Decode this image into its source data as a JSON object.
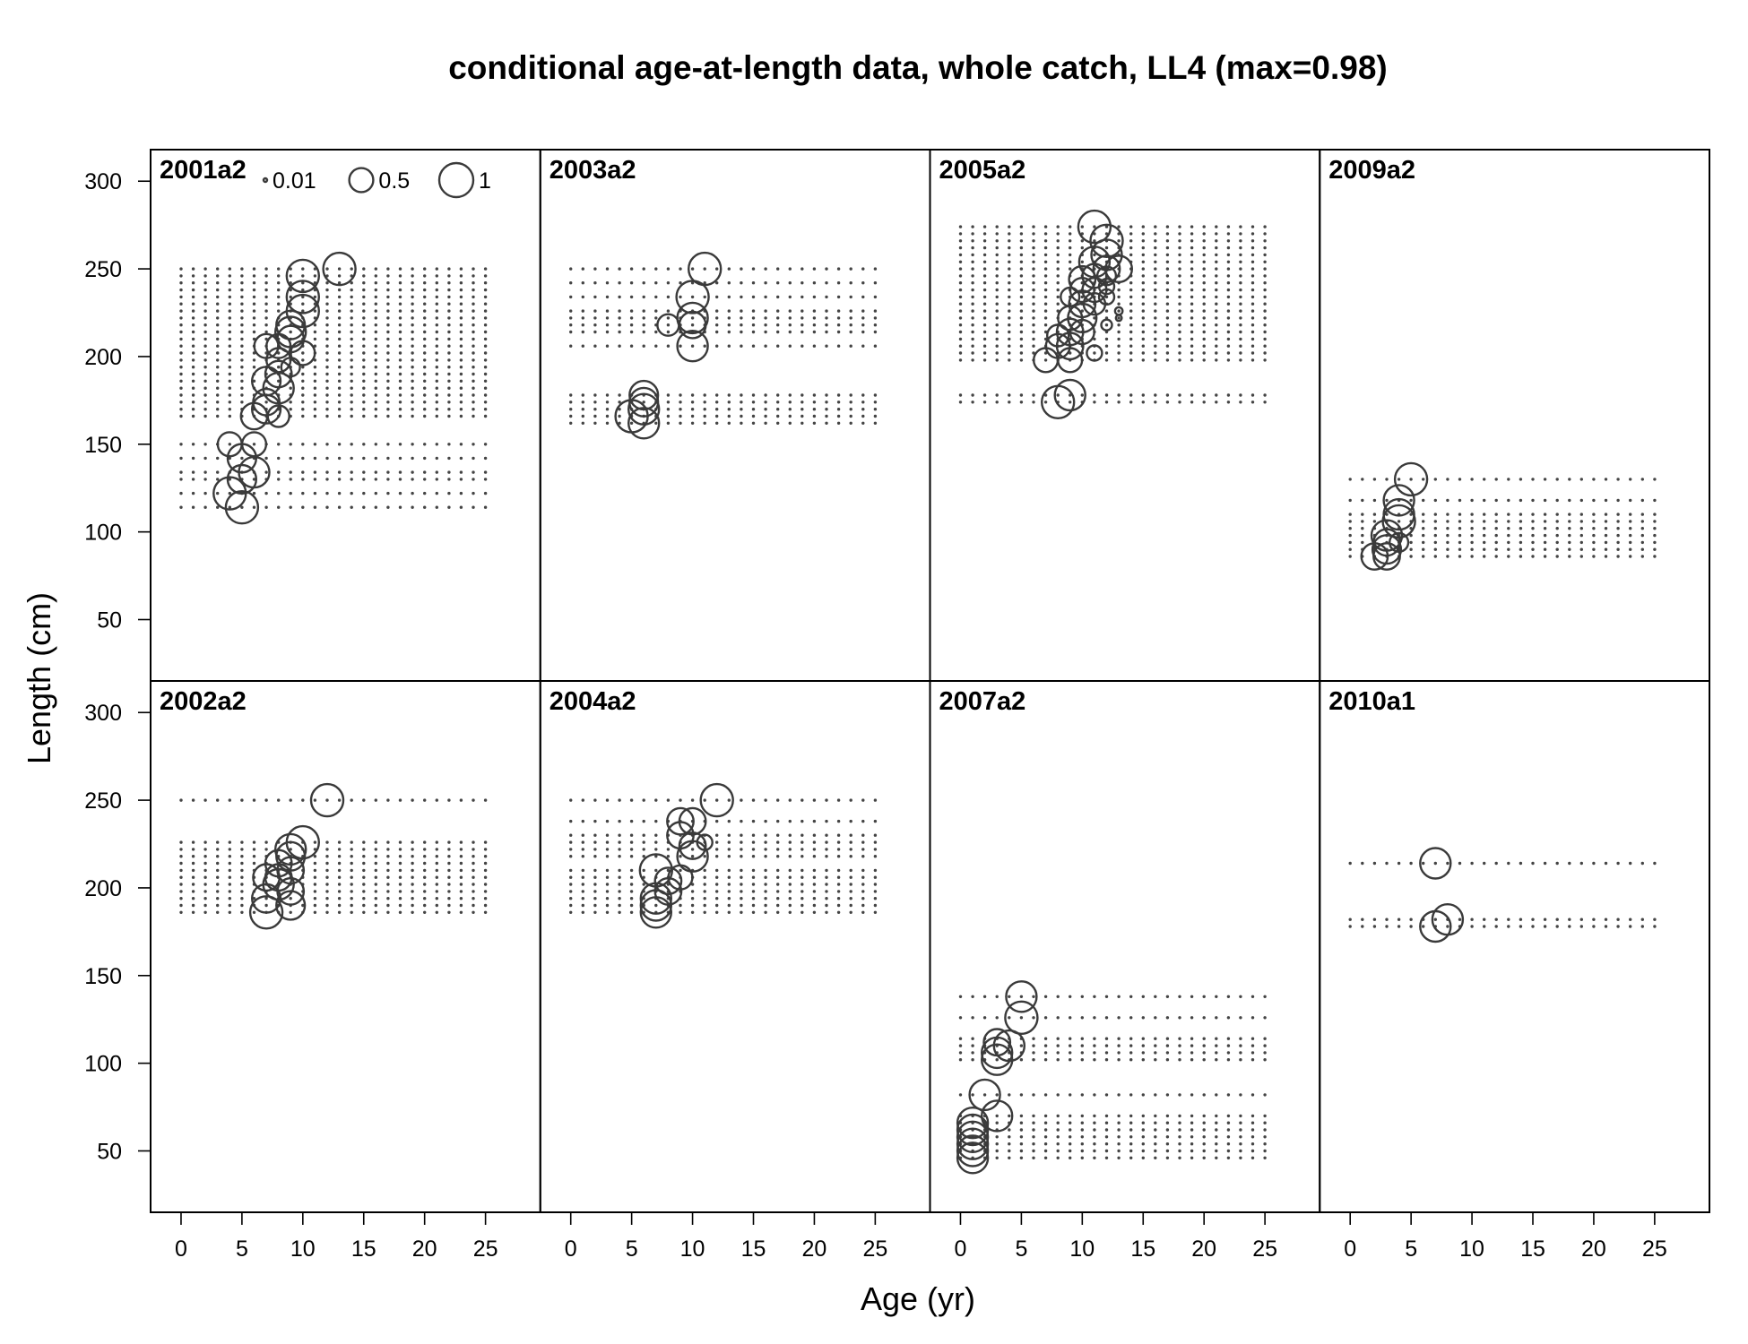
{
  "chart_data": {
    "type": "scatter",
    "title": "conditional age-at-length data, whole catch, LL4 (max=0.98)",
    "xlabel": "Age (yr)",
    "ylabel": "Length (cm)",
    "xlim": [
      -2.5,
      29.5
    ],
    "ylim": [
      15,
      318
    ],
    "x_ticks": [
      0,
      5,
      10,
      15,
      20,
      25
    ],
    "y_ticks": [
      50,
      100,
      150,
      200,
      250,
      300
    ],
    "grid": false,
    "layout_rows": 2,
    "layout_cols": 4,
    "legend": {
      "placement": "top",
      "entries": [
        {
          "label": "0.01",
          "value": 0.01
        },
        {
          "label": "0.5",
          "value": 0.5
        },
        {
          "label": "1",
          "value": 1
        }
      ]
    },
    "panels": [
      {
        "label": "2001a2",
        "lengths": [
          114,
          122,
          130,
          134,
          142,
          150,
          166,
          170,
          174,
          178,
          182,
          186,
          190,
          194,
          198,
          202,
          206,
          210,
          214,
          218,
          222,
          226,
          230,
          234,
          238,
          242,
          246,
          250
        ],
        "points": [
          {
            "age": 5,
            "length": 114,
            "value": 0.9
          },
          {
            "age": 4,
            "length": 122,
            "value": 0.9
          },
          {
            "age": 5,
            "length": 130,
            "value": 0.7
          },
          {
            "age": 6,
            "length": 134,
            "value": 0.8
          },
          {
            "age": 5,
            "length": 142,
            "value": 0.7
          },
          {
            "age": 4,
            "length": 150,
            "value": 0.5
          },
          {
            "age": 6,
            "length": 150,
            "value": 0.5
          },
          {
            "age": 6,
            "length": 166,
            "value": 0.6
          },
          {
            "age": 8,
            "length": 166,
            "value": 0.4
          },
          {
            "age": 7,
            "length": 170,
            "value": 0.7
          },
          {
            "age": 7,
            "length": 174,
            "value": 0.6
          },
          {
            "age": 8,
            "length": 182,
            "value": 0.8
          },
          {
            "age": 7,
            "length": 186,
            "value": 0.7
          },
          {
            "age": 8,
            "length": 190,
            "value": 0.6
          },
          {
            "age": 9,
            "length": 194,
            "value": 0.3
          },
          {
            "age": 8,
            "length": 198,
            "value": 0.5
          },
          {
            "age": 10,
            "length": 202,
            "value": 0.5
          },
          {
            "age": 7,
            "length": 206,
            "value": 0.5
          },
          {
            "age": 8,
            "length": 206,
            "value": 0.5
          },
          {
            "age": 9,
            "length": 210,
            "value": 0.6
          },
          {
            "age": 9,
            "length": 214,
            "value": 0.8
          },
          {
            "age": 9,
            "length": 218,
            "value": 0.7
          },
          {
            "age": 10,
            "length": 226,
            "value": 0.9
          },
          {
            "age": 10,
            "length": 234,
            "value": 0.9
          },
          {
            "age": 10,
            "length": 246,
            "value": 0.9
          },
          {
            "age": 13,
            "length": 250,
            "value": 0.9
          }
        ]
      },
      {
        "label": "2003a2",
        "lengths": [
          162,
          166,
          170,
          174,
          178,
          206,
          214,
          218,
          222,
          226,
          234,
          242,
          250
        ],
        "points": [
          {
            "age": 6,
            "length": 162,
            "value": 0.8
          },
          {
            "age": 5,
            "length": 166,
            "value": 0.9
          },
          {
            "age": 6,
            "length": 170,
            "value": 0.8
          },
          {
            "age": 6,
            "length": 174,
            "value": 0.7
          },
          {
            "age": 6,
            "length": 178,
            "value": 0.7
          },
          {
            "age": 10,
            "length": 206,
            "value": 0.8
          },
          {
            "age": 8,
            "length": 218,
            "value": 0.4
          },
          {
            "age": 10,
            "length": 218,
            "value": 0.6
          },
          {
            "age": 10,
            "length": 222,
            "value": 0.8
          },
          {
            "age": 10,
            "length": 234,
            "value": 0.9
          },
          {
            "age": 11,
            "length": 250,
            "value": 0.9
          }
        ]
      },
      {
        "label": "2005a2",
        "lengths": [
          174,
          178,
          198,
          202,
          206,
          210,
          214,
          218,
          222,
          226,
          230,
          234,
          238,
          242,
          246,
          250,
          254,
          258,
          262,
          266,
          270,
          274
        ],
        "points": [
          {
            "age": 8,
            "length": 174,
            "value": 0.9
          },
          {
            "age": 9,
            "length": 178,
            "value": 0.8
          },
          {
            "age": 7,
            "length": 198,
            "value": 0.5
          },
          {
            "age": 9,
            "length": 198,
            "value": 0.5
          },
          {
            "age": 11,
            "length": 202,
            "value": 0.2
          },
          {
            "age": 8,
            "length": 206,
            "value": 0.5
          },
          {
            "age": 9,
            "length": 206,
            "value": 0.6
          },
          {
            "age": 8,
            "length": 212,
            "value": 0.4
          },
          {
            "age": 9,
            "length": 214,
            "value": 0.6
          },
          {
            "age": 10,
            "length": 214,
            "value": 0.5
          },
          {
            "age": 12,
            "length": 218,
            "value": 0.1
          },
          {
            "age": 9,
            "length": 222,
            "value": 0.5
          },
          {
            "age": 10,
            "length": 222,
            "value": 0.7
          },
          {
            "age": 13,
            "length": 222,
            "value": 0.03
          },
          {
            "age": 13,
            "length": 226,
            "value": 0.05
          },
          {
            "age": 10,
            "length": 230,
            "value": 0.6
          },
          {
            "age": 11,
            "length": 230,
            "value": 0.4
          },
          {
            "age": 9,
            "length": 234,
            "value": 0.3
          },
          {
            "age": 12,
            "length": 234,
            "value": 0.2
          },
          {
            "age": 10,
            "length": 238,
            "value": 0.5
          },
          {
            "age": 11,
            "length": 238,
            "value": 0.5
          },
          {
            "age": 12,
            "length": 240,
            "value": 0.2
          },
          {
            "age": 10,
            "length": 244,
            "value": 0.6
          },
          {
            "age": 11,
            "length": 246,
            "value": 0.5
          },
          {
            "age": 12,
            "length": 246,
            "value": 0.3
          },
          {
            "age": 12,
            "length": 250,
            "value": 0.6
          },
          {
            "age": 13,
            "length": 250,
            "value": 0.6
          },
          {
            "age": 11,
            "length": 254,
            "value": 0.8
          },
          {
            "age": 12,
            "length": 258,
            "value": 0.8
          },
          {
            "age": 12,
            "length": 266,
            "value": 0.9
          },
          {
            "age": 11,
            "length": 274,
            "value": 0.9
          }
        ]
      },
      {
        "label": "2009a2",
        "lengths": [
          86,
          90,
          94,
          98,
          102,
          106,
          110,
          118,
          130
        ],
        "points": [
          {
            "age": 2,
            "length": 86,
            "value": 0.6
          },
          {
            "age": 3,
            "length": 86,
            "value": 0.6
          },
          {
            "age": 3,
            "length": 90,
            "value": 0.7
          },
          {
            "age": 3,
            "length": 94,
            "value": 0.6
          },
          {
            "age": 4,
            "length": 94,
            "value": 0.3
          },
          {
            "age": 3,
            "length": 98,
            "value": 0.8
          },
          {
            "age": 4,
            "length": 106,
            "value": 0.9
          },
          {
            "age": 4,
            "length": 110,
            "value": 0.8
          },
          {
            "age": 4,
            "length": 118,
            "value": 0.8
          },
          {
            "age": 5,
            "length": 130,
            "value": 0.9
          }
        ]
      },
      {
        "label": "2002a2",
        "lengths": [
          186,
          190,
          194,
          198,
          202,
          206,
          210,
          214,
          218,
          222,
          226,
          250
        ],
        "points": [
          {
            "age": 7,
            "length": 186,
            "value": 0.9
          },
          {
            "age": 9,
            "length": 190,
            "value": 0.7
          },
          {
            "age": 7,
            "length": 194,
            "value": 0.7
          },
          {
            "age": 9,
            "length": 198,
            "value": 0.6
          },
          {
            "age": 8,
            "length": 202,
            "value": 0.8
          },
          {
            "age": 7,
            "length": 206,
            "value": 0.6
          },
          {
            "age": 8,
            "length": 206,
            "value": 0.6
          },
          {
            "age": 9,
            "length": 210,
            "value": 0.6
          },
          {
            "age": 8,
            "length": 214,
            "value": 0.6
          },
          {
            "age": 9,
            "length": 218,
            "value": 0.7
          },
          {
            "age": 9,
            "length": 222,
            "value": 0.8
          },
          {
            "age": 10,
            "length": 226,
            "value": 0.9
          },
          {
            "age": 12,
            "length": 250,
            "value": 0.9
          }
        ]
      },
      {
        "label": "2004a2",
        "lengths": [
          186,
          190,
          194,
          198,
          202,
          206,
          210,
          218,
          222,
          226,
          230,
          238,
          250
        ],
        "points": [
          {
            "age": 7,
            "length": 186,
            "value": 0.8
          },
          {
            "age": 7,
            "length": 190,
            "value": 0.8
          },
          {
            "age": 7,
            "length": 194,
            "value": 0.8
          },
          {
            "age": 8,
            "length": 198,
            "value": 0.6
          },
          {
            "age": 8,
            "length": 204,
            "value": 0.6
          },
          {
            "age": 9,
            "length": 206,
            "value": 0.5
          },
          {
            "age": 7,
            "length": 210,
            "value": 0.9
          },
          {
            "age": 10,
            "length": 218,
            "value": 0.8
          },
          {
            "age": 10,
            "length": 224,
            "value": 0.6
          },
          {
            "age": 11,
            "length": 226,
            "value": 0.2
          },
          {
            "age": 9,
            "length": 230,
            "value": 0.6
          },
          {
            "age": 9,
            "length": 238,
            "value": 0.6
          },
          {
            "age": 10,
            "length": 238,
            "value": 0.6
          },
          {
            "age": 12,
            "length": 250,
            "value": 0.9
          }
        ]
      },
      {
        "label": "2007a2",
        "lengths": [
          46,
          50,
          54,
          58,
          62,
          66,
          70,
          82,
          102,
          106,
          110,
          114,
          126,
          138
        ],
        "points": [
          {
            "age": 1,
            "length": 46,
            "value": 0.8
          },
          {
            "age": 1,
            "length": 50,
            "value": 0.8
          },
          {
            "age": 1,
            "length": 54,
            "value": 0.8
          },
          {
            "age": 1,
            "length": 58,
            "value": 0.8
          },
          {
            "age": 1,
            "length": 62,
            "value": 0.8
          },
          {
            "age": 1,
            "length": 66,
            "value": 0.8
          },
          {
            "age": 3,
            "length": 70,
            "value": 0.8
          },
          {
            "age": 2,
            "length": 82,
            "value": 0.8
          },
          {
            "age": 3,
            "length": 102,
            "value": 0.8
          },
          {
            "age": 3,
            "length": 106,
            "value": 0.8
          },
          {
            "age": 4,
            "length": 110,
            "value": 0.8
          },
          {
            "age": 3,
            "length": 112,
            "value": 0.6
          },
          {
            "age": 5,
            "length": 126,
            "value": 0.9
          },
          {
            "age": 5,
            "length": 138,
            "value": 0.8
          }
        ]
      },
      {
        "label": "2010a1",
        "lengths": [
          178,
          182,
          214
        ],
        "points": [
          {
            "age": 7,
            "length": 178,
            "value": 0.8
          },
          {
            "age": 8,
            "length": 182,
            "value": 0.8
          },
          {
            "age": 7,
            "length": 214,
            "value": 0.8
          }
        ]
      }
    ]
  }
}
